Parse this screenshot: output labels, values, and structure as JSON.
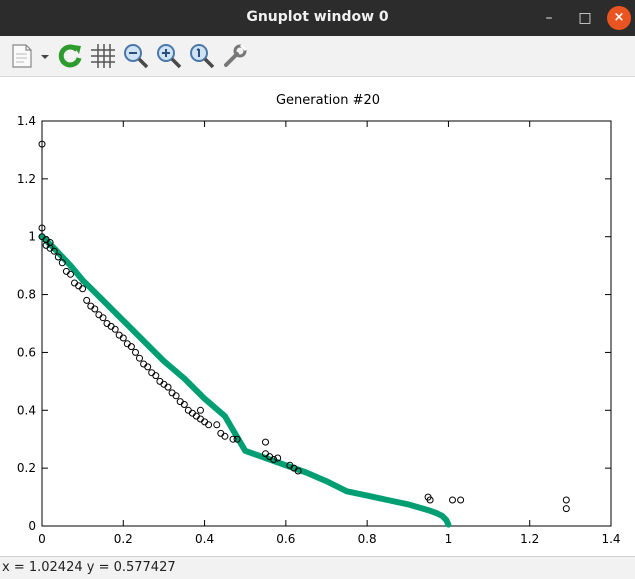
{
  "window": {
    "title": "Gnuplot window 0",
    "minimize_glyph": "–",
    "maximize_glyph": "□",
    "close_glyph": "×"
  },
  "toolbar": {
    "icons": [
      "copy-to-clipboard-icon",
      "dropdown-arrow-icon",
      "replot-icon",
      "grid-icon",
      "zoom-out-icon",
      "zoom-in-icon",
      "zoom-reset-icon",
      "settings-wrench-icon"
    ]
  },
  "status": {
    "coords": "x = 1.02424 y = 0.577427"
  },
  "chart_data": {
    "type": "scatter",
    "title": "Generation #20",
    "xlabel": "",
    "ylabel": "",
    "xlim": [
      0,
      1.4
    ],
    "ylim": [
      0,
      1.4
    ],
    "xticks": [
      "0",
      "0.2",
      "0.4",
      "0.6",
      "0.8",
      "1",
      "1.2",
      "1.4"
    ],
    "yticks": [
      "0",
      "0.2",
      "0.4",
      "0.6",
      "0.8",
      "1",
      "1.2",
      "1.4"
    ],
    "grid": false,
    "front_color": "#009e73",
    "point_color": "#000000",
    "series": [
      {
        "kind": "line",
        "values": [
          [
            0.0,
            1.0
          ],
          [
            0.03,
            0.96
          ],
          [
            0.07,
            0.9
          ],
          [
            0.1,
            0.85
          ],
          [
            0.15,
            0.78
          ],
          [
            0.2,
            0.71
          ],
          [
            0.25,
            0.64
          ],
          [
            0.3,
            0.57
          ],
          [
            0.35,
            0.51
          ],
          [
            0.4,
            0.44
          ],
          [
            0.45,
            0.38
          ],
          [
            0.5,
            0.26
          ],
          [
            0.55,
            0.235
          ],
          [
            0.6,
            0.21
          ],
          [
            0.65,
            0.185
          ],
          [
            0.7,
            0.155
          ],
          [
            0.75,
            0.12
          ],
          [
            0.8,
            0.105
          ],
          [
            0.85,
            0.09
          ],
          [
            0.9,
            0.075
          ],
          [
            0.95,
            0.055
          ],
          [
            0.97,
            0.045
          ],
          [
            0.985,
            0.035
          ],
          [
            0.995,
            0.02
          ],
          [
            1.0,
            0.005
          ]
        ]
      },
      {
        "kind": "points",
        "values": [
          [
            0.0,
            1.32
          ],
          [
            0.0,
            1.03
          ],
          [
            0.0,
            1.0
          ],
          [
            0.01,
            0.99
          ],
          [
            0.02,
            0.98
          ],
          [
            0.01,
            0.97
          ],
          [
            0.02,
            0.96
          ],
          [
            0.03,
            0.95
          ],
          [
            0.04,
            0.93
          ],
          [
            0.05,
            0.91
          ],
          [
            0.06,
            0.88
          ],
          [
            0.07,
            0.87
          ],
          [
            0.08,
            0.84
          ],
          [
            0.09,
            0.83
          ],
          [
            0.1,
            0.82
          ],
          [
            0.11,
            0.78
          ],
          [
            0.12,
            0.76
          ],
          [
            0.13,
            0.75
          ],
          [
            0.14,
            0.73
          ],
          [
            0.15,
            0.72
          ],
          [
            0.16,
            0.7
          ],
          [
            0.17,
            0.69
          ],
          [
            0.18,
            0.68
          ],
          [
            0.19,
            0.66
          ],
          [
            0.2,
            0.65
          ],
          [
            0.21,
            0.63
          ],
          [
            0.22,
            0.62
          ],
          [
            0.23,
            0.6
          ],
          [
            0.24,
            0.58
          ],
          [
            0.25,
            0.56
          ],
          [
            0.26,
            0.55
          ],
          [
            0.27,
            0.53
          ],
          [
            0.28,
            0.52
          ],
          [
            0.29,
            0.5
          ],
          [
            0.3,
            0.49
          ],
          [
            0.31,
            0.48
          ],
          [
            0.32,
            0.46
          ],
          [
            0.33,
            0.45
          ],
          [
            0.34,
            0.43
          ],
          [
            0.35,
            0.42
          ],
          [
            0.36,
            0.4
          ],
          [
            0.37,
            0.39
          ],
          [
            0.38,
            0.38
          ],
          [
            0.39,
            0.4
          ],
          [
            0.39,
            0.37
          ],
          [
            0.4,
            0.36
          ],
          [
            0.41,
            0.35
          ],
          [
            0.43,
            0.35
          ],
          [
            0.44,
            0.32
          ],
          [
            0.45,
            0.31
          ],
          [
            0.47,
            0.3
          ],
          [
            0.48,
            0.3
          ],
          [
            0.55,
            0.29
          ],
          [
            0.55,
            0.25
          ],
          [
            0.56,
            0.24
          ],
          [
            0.57,
            0.23
          ],
          [
            0.58,
            0.235
          ],
          [
            0.61,
            0.21
          ],
          [
            0.62,
            0.2
          ],
          [
            0.63,
            0.19
          ],
          [
            0.95,
            0.1
          ],
          [
            0.955,
            0.09
          ],
          [
            1.01,
            0.09
          ],
          [
            1.03,
            0.09
          ],
          [
            1.29,
            0.09
          ],
          [
            1.29,
            0.06
          ]
        ]
      }
    ]
  }
}
